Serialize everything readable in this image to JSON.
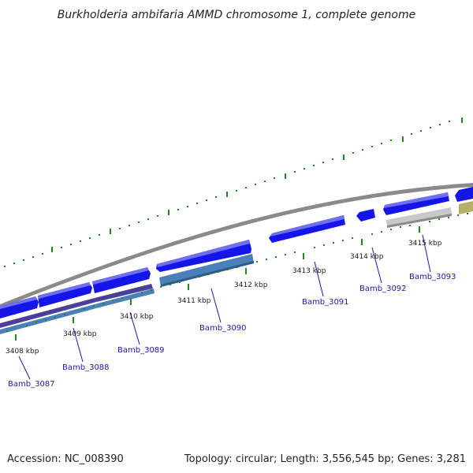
{
  "title": "Burkholderia ambifaria AMMD chromosome 1, complete genome",
  "accession": "Accession: NC_008390",
  "topology": "Topology: circular; Length: 3,556,545 bp; Genes: 3,281",
  "ticks": [
    "3408 kbp",
    "3409 kbp",
    "3410 kbp",
    "3411 kbp",
    "3412 kbp",
    "3413 kbp",
    "3414 kbp",
    "3415 kbp"
  ],
  "genes": [
    "Bamb_3087",
    "Bamb_3088",
    "Bamb_3089",
    "Bamb_3090",
    "Bamb_3091",
    "Bamb_3092",
    "Bamb_3093"
  ],
  "colors": {
    "backbone": "#8a8a8a",
    "cds_forward": "#1515e8",
    "cds_forward_light": "#6f6ff5",
    "protein_purple": "#4a3f9a",
    "protein_steelblue": "#4a7fb8",
    "protein_gray": "#c8c8c8",
    "protein_olive": "#b5b068",
    "tick": "#1e8a1e",
    "gene_label": "#1a1aa8"
  }
}
